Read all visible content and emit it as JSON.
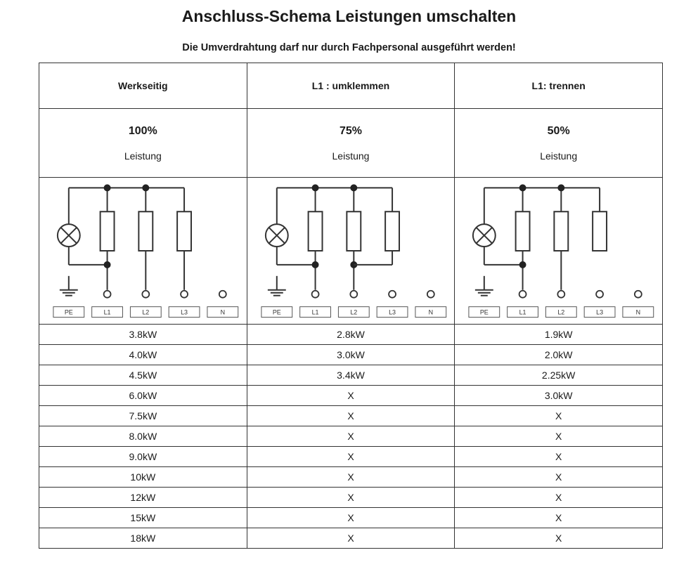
{
  "title": "Anschluss-Schema Leistungen umschalten",
  "subtitle": "Die Umverdrahtung darf nur durch Fachpersonal ausgeführt werden!",
  "columns": [
    {
      "header": "Werkseitig",
      "percent": "100%",
      "leistung": "Leistung"
    },
    {
      "header": "L1 : umklemmen",
      "percent": "75%",
      "leistung": "Leistung"
    },
    {
      "header": "L1: trennen",
      "percent": "50%",
      "leistung": "Leistung"
    }
  ],
  "terminals": [
    "PE",
    "L1",
    "L2",
    "L3",
    "N"
  ],
  "rows": [
    [
      "3.8kW",
      "2.8kW",
      "1.9kW"
    ],
    [
      "4.0kW",
      "3.0kW",
      "2.0kW"
    ],
    [
      "4.5kW",
      "3.4kW",
      "2.25kW"
    ],
    [
      "6.0kW",
      "X",
      "3.0kW"
    ],
    [
      "7.5kW",
      "X",
      "X"
    ],
    [
      "8.0kW",
      "X",
      "X"
    ],
    [
      "9.0kW",
      "X",
      "X"
    ],
    [
      "10kW",
      "X",
      "X"
    ],
    [
      "12kW",
      "X",
      "X"
    ],
    [
      "15kW",
      "X",
      "X"
    ],
    [
      "18kW",
      "X",
      "X"
    ]
  ]
}
